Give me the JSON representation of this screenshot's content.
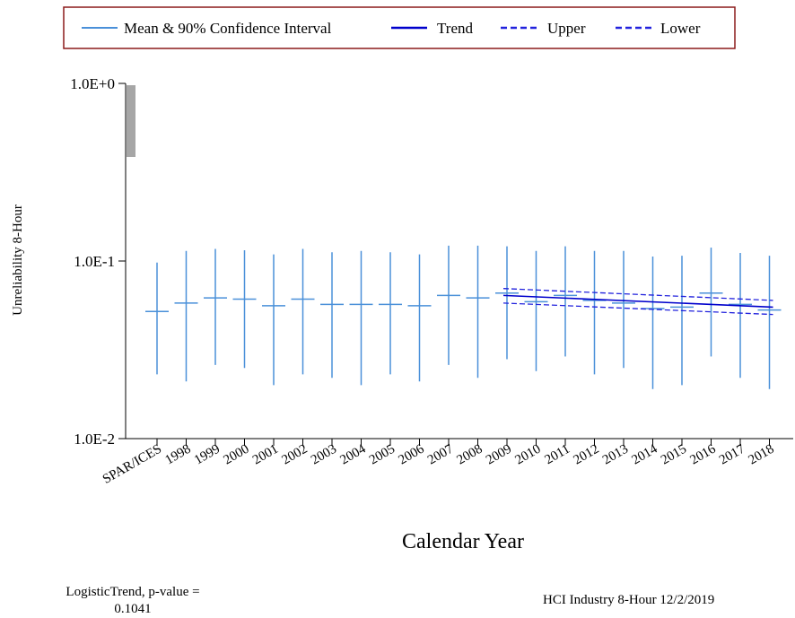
{
  "legend": {
    "mean_label": "Mean & 90% Confidence Interval",
    "trend_label": "Trend",
    "upper_label": "Upper",
    "lower_label": "Lower"
  },
  "footer": {
    "left_line1": "LogisticTrend, p-value =",
    "left_line2": "0.1041",
    "right": "HCI Industry 8-Hour 12/2/2019"
  },
  "colors": {
    "mean_ci": "#4a90d9",
    "trend": "#0000cc",
    "bounds": "#2222dd",
    "legend_border": "#8b1a1a"
  },
  "chart_data": {
    "type": "scatter",
    "ylabel": "Unreliability 8-Hour",
    "xlabel": "Calendar Year",
    "yscale": "log",
    "ylim": [
      0.01,
      1.0
    ],
    "ytick_labels": [
      "1.0E-2",
      "1.0E-1",
      "1.0E+0"
    ],
    "ytick_values": [
      0.01,
      0.1,
      1.0
    ],
    "categories": [
      "SPAR/ICES",
      "1998",
      "1999",
      "2000",
      "2001",
      "2002",
      "2003",
      "2004",
      "2005",
      "2006",
      "2007",
      "2008",
      "2009",
      "2010",
      "2011",
      "2012",
      "2013",
      "2014",
      "2015",
      "2016",
      "2017",
      "2018"
    ],
    "series": [
      {
        "name": "Mean & 90% Confidence Interval",
        "mean": [
          0.052,
          0.058,
          0.062,
          0.061,
          0.056,
          0.061,
          0.057,
          0.057,
          0.057,
          0.056,
          0.064,
          0.062,
          0.066,
          0.059,
          0.064,
          0.06,
          0.058,
          0.054,
          0.055,
          0.066,
          0.057,
          0.053
        ],
        "lower": [
          0.023,
          0.021,
          0.026,
          0.025,
          0.02,
          0.023,
          0.022,
          0.02,
          0.023,
          0.021,
          0.026,
          0.022,
          0.028,
          0.024,
          0.029,
          0.023,
          0.025,
          0.019,
          0.02,
          0.029,
          0.022,
          0.019
        ],
        "upper": [
          0.098,
          0.114,
          0.117,
          0.115,
          0.109,
          0.117,
          0.112,
          0.114,
          0.112,
          0.109,
          0.122,
          0.122,
          0.121,
          0.114,
          0.121,
          0.114,
          0.114,
          0.106,
          0.107,
          0.119,
          0.111,
          0.107
        ]
      },
      {
        "name": "Trend",
        "x": [
          "2009",
          "2018"
        ],
        "values": [
          0.064,
          0.055
        ]
      },
      {
        "name": "Upper",
        "x": [
          "2009",
          "2018"
        ],
        "values": [
          0.07,
          0.06
        ]
      },
      {
        "name": "Lower",
        "x": [
          "2009",
          "2018"
        ],
        "values": [
          0.058,
          0.05
        ]
      }
    ]
  }
}
